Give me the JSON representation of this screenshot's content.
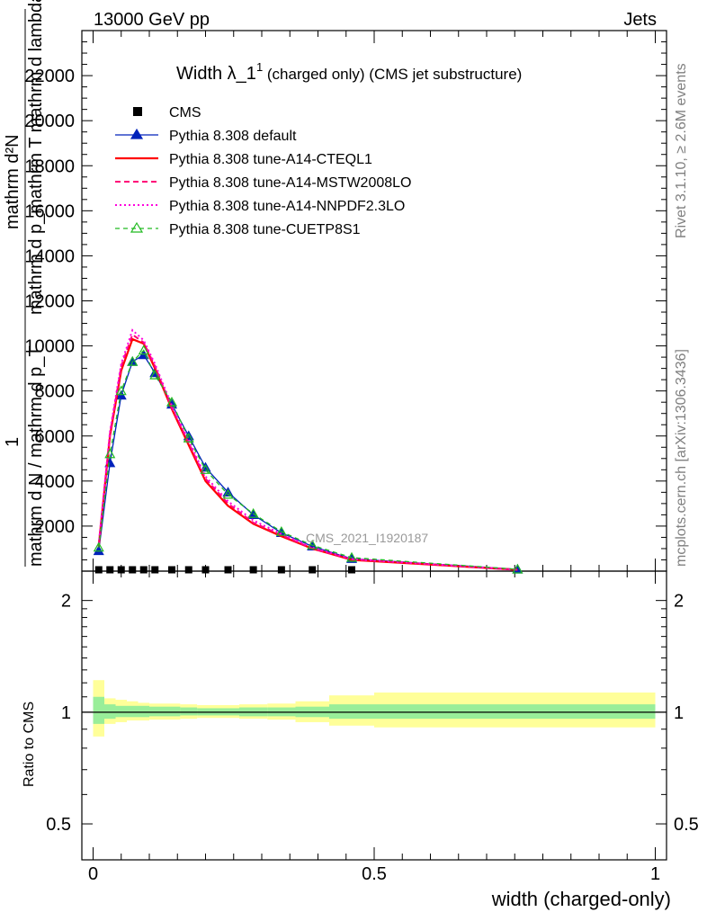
{
  "header": {
    "left": "13000 GeV pp",
    "right": "Jets"
  },
  "side_labels": {
    "rivet": "Rivet 3.1.10, ≥ 2.6M events",
    "mcplots": "mcplots.cern.ch [arXiv:1306.3436]"
  },
  "watermark": "CMS_2021_I1920187",
  "title": {
    "main": "Width λ_1",
    "sup": "1",
    "rest": " (charged only) (CMS jet substructure)"
  },
  "ylabel_main": {
    "numerator": "mathrm d²N",
    "denominator": "mathrm d p_mathrm T mathrm d lambda",
    "line2_num": "mathrm d p_mathrm T mathrm d lambda",
    "one": "1",
    "line3": "mathrm d N / mathrm d p_T"
  },
  "ylabel_ratio": "Ratio to CMS",
  "xlabel": "width (charged-only)",
  "legend": [
    {
      "label": "CMS",
      "color": "#000000",
      "style": "square"
    },
    {
      "label": "Pythia 8.308 default",
      "color": "#0022bb",
      "style": "solid-triangle"
    },
    {
      "label": "Pythia 8.308 tune-A14-CTEQL1",
      "color": "#ff0000",
      "style": "solid"
    },
    {
      "label": "Pythia 8.308 tune-A14-MSTW2008LO",
      "color": "#ff0077",
      "style": "dashed"
    },
    {
      "label": "Pythia 8.308 tune-A14-NNPDF2.3LO",
      "color": "#ff00dd",
      "style": "dotted"
    },
    {
      "label": "Pythia 8.308 tune-CUETP8S1",
      "color": "#22bb22",
      "style": "dashed-triangle"
    }
  ],
  "chart_data": {
    "type": "line",
    "x": [
      0.01,
      0.03,
      0.05,
      0.07,
      0.09,
      0.11,
      0.14,
      0.17,
      0.2,
      0.24,
      0.285,
      0.335,
      0.39,
      0.46,
      0.755
    ],
    "xlim": [
      -0.02,
      1.02
    ],
    "ylim": [
      0,
      24000
    ],
    "yticks": [
      2000,
      4000,
      6000,
      8000,
      10000,
      12000,
      14000,
      16000,
      18000,
      20000,
      22000
    ],
    "ytick_labels": [
      "2000",
      "4000",
      "6000",
      "8000",
      "10000",
      "12000",
      "14000",
      "16000",
      "18000",
      "20000",
      "22000"
    ],
    "xticks": [
      0,
      0.5,
      1
    ],
    "xtick_labels": [
      "0",
      "0.5",
      "1"
    ],
    "ratio_ylim_log": [
      0.4,
      2.4
    ],
    "ratio_yticks": [
      0.5,
      1,
      2
    ],
    "ratio_ytick_labels": [
      "0.5",
      "1",
      "2"
    ],
    "cms_points": {
      "x": [
        0.01,
        0.03,
        0.05,
        0.07,
        0.09,
        0.11,
        0.14,
        0.17,
        0.2,
        0.24,
        0.285,
        0.335,
        0.39,
        0.46
      ],
      "y": [
        60,
        60,
        60,
        60,
        60,
        60,
        60,
        60,
        60,
        60,
        60,
        60,
        60,
        60
      ]
    },
    "series": [
      {
        "name": "Pythia 8.308 default",
        "color": "#0022bb",
        "y": [
          900,
          4800,
          7800,
          9300,
          9600,
          8800,
          7400,
          6000,
          4600,
          3500,
          2500,
          1700,
          1100,
          550,
          80
        ]
      },
      {
        "name": "Pythia 8.308 tune-A14-CTEQL1",
        "color": "#ff0000",
        "y": [
          1100,
          6000,
          8900,
          10300,
          10100,
          9000,
          7200,
          5600,
          4000,
          2900,
          2100,
          1550,
          1000,
          500,
          60
        ]
      },
      {
        "name": "Pythia 8.308 tune-A14-MSTW2008LO",
        "color": "#ff0077",
        "y": [
          1150,
          6100,
          9100,
          10500,
          10150,
          9100,
          7250,
          5700,
          4100,
          3000,
          2150,
          1600,
          1000,
          520,
          60
        ]
      },
      {
        "name": "Pythia 8.308 tune-A14-NNPDF2.3LO",
        "color": "#ff00dd",
        "y": [
          1200,
          6200,
          9200,
          10700,
          10250,
          9200,
          7350,
          5800,
          4200,
          3100,
          2250,
          1650,
          1050,
          540,
          60
        ]
      },
      {
        "name": "Pythia 8.308 tune-CUETP8S1",
        "color": "#22bb22",
        "y": [
          1050,
          5200,
          8000,
          9300,
          9800,
          8700,
          7500,
          5900,
          4500,
          3400,
          2550,
          1750,
          1150,
          600,
          80
        ]
      }
    ],
    "ratio_bands": {
      "bin_edges": [
        0.0,
        0.02,
        0.04,
        0.06,
        0.08,
        0.1,
        0.12,
        0.155,
        0.185,
        0.22,
        0.26,
        0.31,
        0.36,
        0.42,
        0.5,
        1.0
      ],
      "inner": [
        [
          0.93,
          1.1
        ],
        [
          0.96,
          1.05
        ],
        [
          0.97,
          1.04
        ],
        [
          0.97,
          1.04
        ],
        [
          0.97,
          1.04
        ],
        [
          0.975,
          1.035
        ],
        [
          0.975,
          1.035
        ],
        [
          0.98,
          1.03
        ],
        [
          0.98,
          1.025
        ],
        [
          0.98,
          1.025
        ],
        [
          0.975,
          1.03
        ],
        [
          0.975,
          1.03
        ],
        [
          0.97,
          1.035
        ],
        [
          0.96,
          1.05
        ],
        [
          0.96,
          1.05
        ]
      ],
      "outer": [
        [
          0.86,
          1.22
        ],
        [
          0.93,
          1.09
        ],
        [
          0.94,
          1.08
        ],
        [
          0.95,
          1.07
        ],
        [
          0.95,
          1.06
        ],
        [
          0.955,
          1.055
        ],
        [
          0.955,
          1.055
        ],
        [
          0.96,
          1.05
        ],
        [
          0.965,
          1.045
        ],
        [
          0.965,
          1.045
        ],
        [
          0.96,
          1.05
        ],
        [
          0.955,
          1.055
        ],
        [
          0.94,
          1.07
        ],
        [
          0.92,
          1.11
        ],
        [
          0.91,
          1.13
        ]
      ]
    }
  }
}
